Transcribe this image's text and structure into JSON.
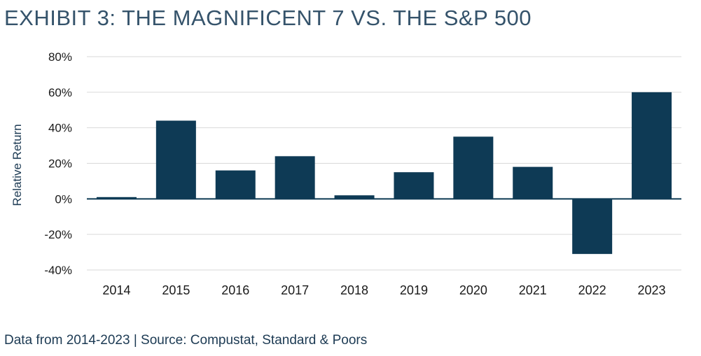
{
  "title": "EXHIBIT 3: THE MAGNIFICENT 7 VS. THE S&P 500",
  "source": "Data from 2014-2023 | Source: Compustat, Standard & Poors",
  "colors": {
    "bar": "#0e3a55",
    "grid": "#d9d9d9",
    "zero": "#0e3a55"
  },
  "chart_data": {
    "type": "bar",
    "title": "EXHIBIT 3: THE MAGNIFICENT 7 VS. THE S&P 500",
    "xlabel": "",
    "ylabel": "Relative Return",
    "categories": [
      "2014",
      "2015",
      "2016",
      "2017",
      "2018",
      "2019",
      "2020",
      "2021",
      "2022",
      "2023"
    ],
    "values": [
      1,
      44,
      16,
      24,
      2,
      15,
      35,
      18,
      -31,
      60
    ],
    "ylim": [
      -40,
      80
    ],
    "yticks": [
      80,
      60,
      40,
      20,
      0,
      -20,
      -40
    ],
    "ytick_labels": [
      "80%",
      "60%",
      "40%",
      "20%",
      "0%",
      "-20%",
      "-40%"
    ],
    "grid": true,
    "legend": false
  }
}
